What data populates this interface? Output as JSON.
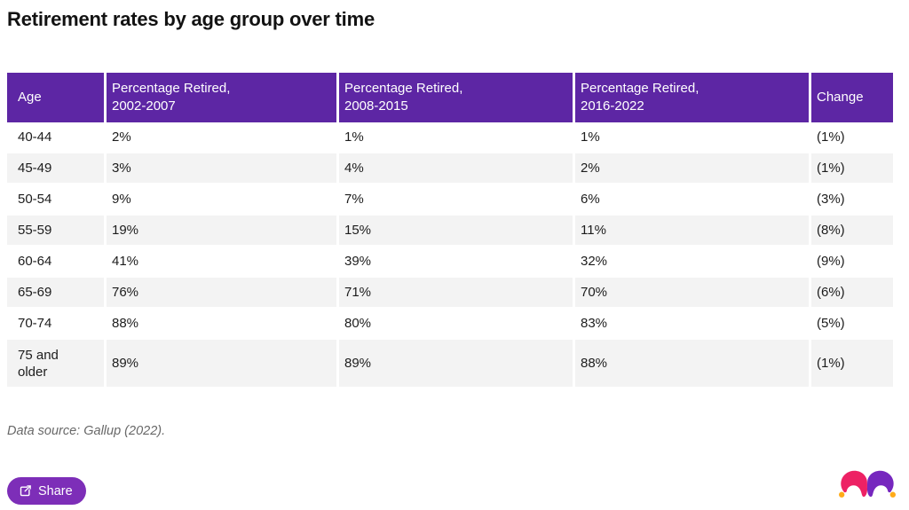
{
  "chart_data": {
    "type": "table",
    "title": "Retirement rates by age group over time",
    "columns": [
      "Age",
      "Percentage Retired,\n2002-2007",
      "Percentage Retired,\n2008-2015",
      "Percentage Retired,\n2016-2022",
      "Change"
    ],
    "rows": [
      [
        "40-44",
        "2%",
        "1%",
        "1%",
        "(1%)"
      ],
      [
        "45-49",
        "3%",
        "4%",
        "2%",
        "(1%)"
      ],
      [
        "50-54",
        "9%",
        "7%",
        "6%",
        "(3%)"
      ],
      [
        "55-59",
        "19%",
        "15%",
        "11%",
        "(8%)"
      ],
      [
        "60-64",
        "41%",
        "39%",
        "32%",
        "(9%)"
      ],
      [
        "65-69",
        "76%",
        "71%",
        "70%",
        "(6%)"
      ],
      [
        "70-74",
        "88%",
        "80%",
        "83%",
        "(5%)"
      ],
      [
        "75 and older",
        "89%",
        "89%",
        "88%",
        "(1%)"
      ]
    ],
    "source": "Data source: Gallup (2022).",
    "layout": {
      "header_style": "solid-purple",
      "zebra_stripes": true,
      "grid": "white-column-gaps"
    }
  },
  "footer": {
    "source_note": "Data source: Gallup (2022).",
    "share_button": "Share"
  },
  "icons": {
    "share": "share-export-icon",
    "logo": "jester-hat-logo"
  },
  "colors": {
    "header_bg": "#5d26a4",
    "row_alt_bg": "#f3f3f3",
    "share_bg": "#7d2eb8",
    "body_text": "#1c1c1c",
    "source_text": "#686868",
    "logo_pink": "#ed2164",
    "logo_purple": "#7627be",
    "logo_gold": "#ffab19"
  }
}
